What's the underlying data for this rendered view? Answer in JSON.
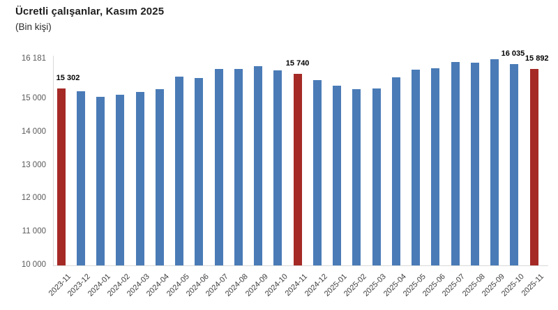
{
  "page": {
    "title": "Ücretli çalışanlar, Kasım 2025",
    "subtitle": "(Bin kişi)"
  },
  "chart_data": {
    "type": "bar",
    "title": "Ücretli çalışanlar, Kasım 2025",
    "subtitle": "(Bin kişi)",
    "xlabel": "",
    "ylabel": "Bin kişi",
    "ylim": [
      10000,
      16181
    ],
    "grid": false,
    "legend": "none",
    "categories": [
      "2023-11",
      "2023-12",
      "2024-01",
      "2024-02",
      "2024-03",
      "2024-04",
      "2024-05",
      "2024-06",
      "2024-07",
      "2024-08",
      "2024-09",
      "2024-10",
      "2024-11",
      "2024-12",
      "2025-01",
      "2025-02",
      "2025-03",
      "2025-04",
      "2025-05",
      "2025-06",
      "2025-07",
      "2025-08",
      "2025-09",
      "2025-10",
      "2025-11"
    ],
    "values": [
      15302,
      15230,
      15065,
      15125,
      15210,
      15280,
      15675,
      15620,
      15900,
      15895,
      15985,
      15850,
      15740,
      15570,
      15395,
      15300,
      15320,
      15640,
      15880,
      15915,
      16105,
      16075,
      16181,
      16035,
      15892
    ],
    "highlight_indices": [
      0,
      12,
      24
    ],
    "point_labels": [
      {
        "index": 0,
        "text": "15 302",
        "dx": 10
      },
      {
        "index": 12,
        "text": "15 740",
        "dx": 0
      },
      {
        "index": 23,
        "text": "16 035",
        "dx": -2
      },
      {
        "index": 24,
        "text": "15 892",
        "dx": 4
      }
    ],
    "y_ticks": [
      {
        "value": 16181,
        "label": "16 181"
      },
      {
        "value": 15000,
        "label": "15 000"
      },
      {
        "value": 14000,
        "label": "14 000"
      },
      {
        "value": 13000,
        "label": "13 000"
      },
      {
        "value": 12000,
        "label": "12 000"
      },
      {
        "value": 11000,
        "label": "11 000"
      },
      {
        "value": 10000,
        "label": "10 000"
      }
    ],
    "colors": {
      "bar": "#4a7bb7",
      "highlight": "#a52a26",
      "axis": "#d9d9d9",
      "tick_label": "#595959",
      "x_label": "#3d3d3d",
      "value_label": "#000000"
    }
  }
}
